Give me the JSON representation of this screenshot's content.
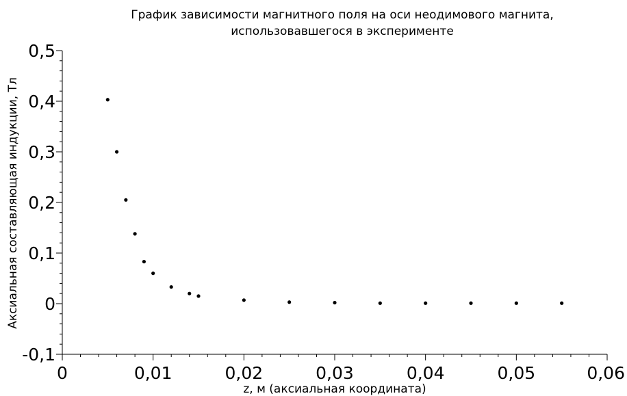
{
  "chart_data": {
    "type": "scatter",
    "title": [
      "График зависимости магнитного поля на оси неодимового магнита,",
      "использовавшегося в эксперименте"
    ],
    "xlabel": "z, м (аксиальная координата)",
    "ylabel": "Аксиальная составляющая индукции, Тл",
    "xlim": [
      0,
      0.06
    ],
    "ylim": [
      -0.1,
      0.5
    ],
    "x_ticks": [
      0,
      0.01,
      0.02,
      0.03,
      0.04,
      0.05,
      0.06
    ],
    "x_tick_labels": [
      "0",
      "0,01",
      "0,02",
      "0,03",
      "0,04",
      "0,05",
      "0,06"
    ],
    "y_ticks": [
      -0.1,
      0,
      0.1,
      0.2,
      0.3,
      0.4,
      0.5
    ],
    "y_tick_labels": [
      "-0,1",
      "0",
      "0,1",
      "0,2",
      "0,3",
      "0,4",
      "0,5"
    ],
    "grid": false,
    "series": [
      {
        "x": [
          0.005,
          0.006,
          0.007,
          0.008,
          0.009,
          0.01,
          0.012,
          0.014,
          0.015,
          0.02,
          0.025,
          0.03,
          0.035,
          0.04,
          0.045,
          0.05,
          0.055
        ],
        "y": [
          0.403,
          0.3,
          0.205,
          0.138,
          0.083,
          0.06,
          0.033,
          0.02,
          0.015,
          0.007,
          0.003,
          0.002,
          0.001,
          0.001,
          0.001,
          0.001,
          0.001
        ]
      }
    ]
  }
}
